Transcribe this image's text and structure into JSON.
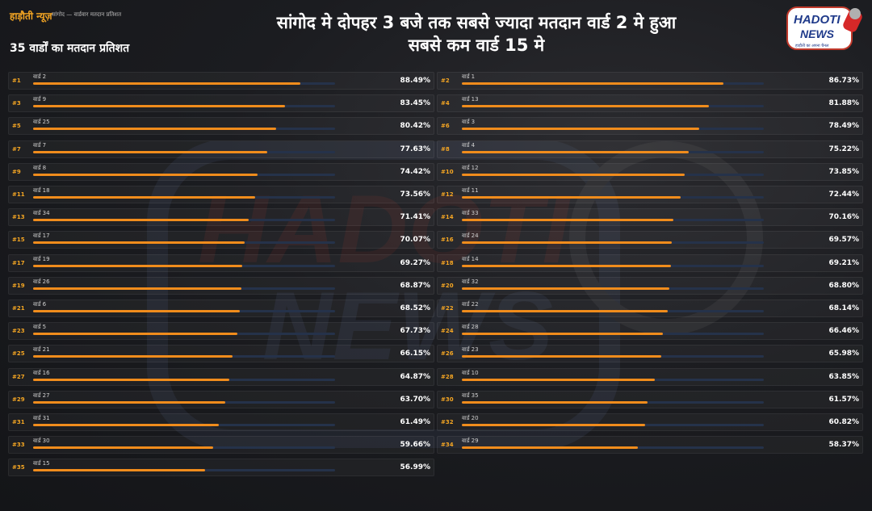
{
  "header": {
    "brand": "हाड़ौती न्यूज़",
    "breadcrumb": "सांगोद — वार्डवार मतदान प्रतिशत",
    "headline_line1": "सांगोद मे दोपहर 3 बजे तक सबसे ज्यादा मतदान वार्ड 2 मे हुआ",
    "headline_line2": "सबसे कम वार्ड 15 मे",
    "subtitle": "35 वार्डों का मतदान प्रतिशत"
  },
  "logo": {
    "line1": "HADOTI",
    "line2": "NEWS",
    "tagline": "हाड़ौती का अपना चैनल"
  },
  "colors": {
    "accent": "#f5a623",
    "bar_fill": "#f08c1c",
    "bar_track": "#25324a",
    "background": "#1b1c20"
  },
  "chart_data": {
    "type": "bar",
    "orientation": "horizontal",
    "xlim": [
      0,
      100
    ],
    "unit": "%",
    "rows": [
      {
        "rank": "#1",
        "ward": "वार्ड 2",
        "label": "88.49%",
        "value": 88.49
      },
      {
        "rank": "#2",
        "ward": "वार्ड 1",
        "label": "86.73%",
        "value": 86.73
      },
      {
        "rank": "#3",
        "ward": "वार्ड 9",
        "label": "83.45%",
        "value": 83.45
      },
      {
        "rank": "#4",
        "ward": "वार्ड 13",
        "label": "81.88%",
        "value": 81.88
      },
      {
        "rank": "#5",
        "ward": "वार्ड 25",
        "label": "80.42%",
        "value": 80.42
      },
      {
        "rank": "#6",
        "ward": "वार्ड 3",
        "label": "78.49%",
        "value": 78.49
      },
      {
        "rank": "#7",
        "ward": "वार्ड 7",
        "label": "77.63%",
        "value": 77.63
      },
      {
        "rank": "#8",
        "ward": "वार्ड 4",
        "label": "75.22%",
        "value": 75.22
      },
      {
        "rank": "#9",
        "ward": "वार्ड 8",
        "label": "74.42%",
        "value": 74.42
      },
      {
        "rank": "#10",
        "ward": "वार्ड 12",
        "label": "73.85%",
        "value": 73.85
      },
      {
        "rank": "#11",
        "ward": "वार्ड 18",
        "label": "73.56%",
        "value": 73.56
      },
      {
        "rank": "#12",
        "ward": "वार्ड 11",
        "label": "72.44%",
        "value": 72.44
      },
      {
        "rank": "#13",
        "ward": "वार्ड 34",
        "label": "71.41%",
        "value": 71.41
      },
      {
        "rank": "#14",
        "ward": "वार्ड 33",
        "label": "70.16%",
        "value": 70.16
      },
      {
        "rank": "#15",
        "ward": "वार्ड 17",
        "label": "70.07%",
        "value": 70.07
      },
      {
        "rank": "#16",
        "ward": "वार्ड 24",
        "label": "69.57%",
        "value": 69.57
      },
      {
        "rank": "#17",
        "ward": "वार्ड 19",
        "label": "69.27%",
        "value": 69.27
      },
      {
        "rank": "#18",
        "ward": "वार्ड 14",
        "label": "69.21%",
        "value": 69.21
      },
      {
        "rank": "#19",
        "ward": "वार्ड 26",
        "label": "68.87%",
        "value": 68.87
      },
      {
        "rank": "#20",
        "ward": "वार्ड 32",
        "label": "68.80%",
        "value": 68.8
      },
      {
        "rank": "#21",
        "ward": "वार्ड 6",
        "label": "68.52%",
        "value": 68.52
      },
      {
        "rank": "#22",
        "ward": "वार्ड 22",
        "label": "68.14%",
        "value": 68.14
      },
      {
        "rank": "#23",
        "ward": "वार्ड 5",
        "label": "67.73%",
        "value": 67.73
      },
      {
        "rank": "#24",
        "ward": "वार्ड 28",
        "label": "66.46%",
        "value": 66.46
      },
      {
        "rank": "#25",
        "ward": "वार्ड 21",
        "label": "66.15%",
        "value": 66.15
      },
      {
        "rank": "#26",
        "ward": "वार्ड 23",
        "label": "65.98%",
        "value": 65.98
      },
      {
        "rank": "#27",
        "ward": "वार्ड 16",
        "label": "64.87%",
        "value": 64.87
      },
      {
        "rank": "#28",
        "ward": "वार्ड 10",
        "label": "63.85%",
        "value": 63.85
      },
      {
        "rank": "#29",
        "ward": "वार्ड 27",
        "label": "63.70%",
        "value": 63.7
      },
      {
        "rank": "#30",
        "ward": "वार्ड 35",
        "label": "61.57%",
        "value": 61.57
      },
      {
        "rank": "#31",
        "ward": "वार्ड 31",
        "label": "61.49%",
        "value": 61.49
      },
      {
        "rank": "#32",
        "ward": "वार्ड 20",
        "label": "60.82%",
        "value": 60.82
      },
      {
        "rank": "#33",
        "ward": "वार्ड 30",
        "label": "59.66%",
        "value": 59.66
      },
      {
        "rank": "#34",
        "ward": "वार्ड 29",
        "label": "58.37%",
        "value": 58.37
      },
      {
        "rank": "#35",
        "ward": "वार्ड 15",
        "label": "56.99%",
        "value": 56.99
      }
    ]
  }
}
